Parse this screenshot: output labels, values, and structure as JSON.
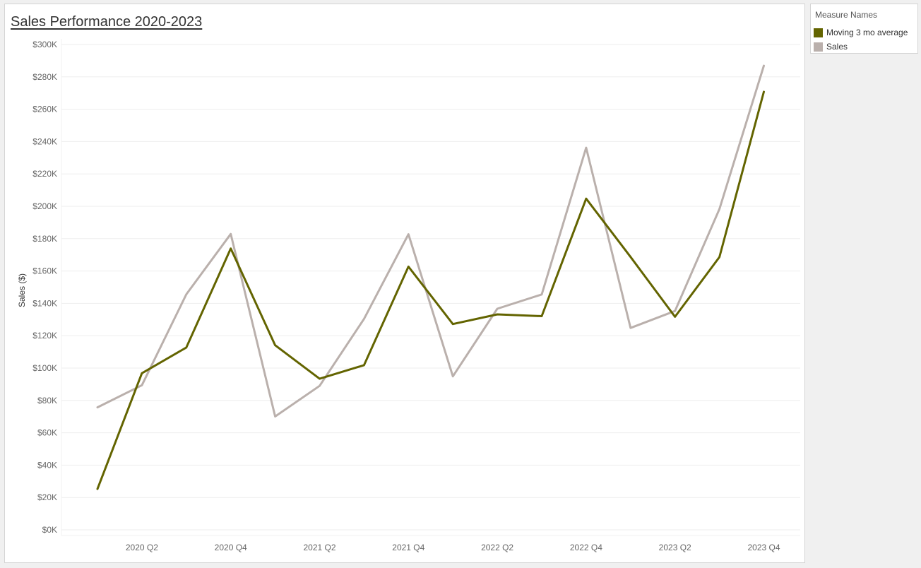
{
  "chart_data": {
    "type": "line",
    "title": "Sales Performance 2020-2023",
    "ylabel": "Sales ($)",
    "xlabel": "",
    "ylim": [
      0,
      300000
    ],
    "y_ticks": [
      0,
      20000,
      40000,
      60000,
      80000,
      100000,
      120000,
      140000,
      160000,
      180000,
      200000,
      220000,
      240000,
      260000,
      280000,
      300000
    ],
    "y_tick_labels": [
      "$0K",
      "$20K",
      "$40K",
      "$60K",
      "$80K",
      "$100K",
      "$120K",
      "$140K",
      "$160K",
      "$180K",
      "$200K",
      "$220K",
      "$240K",
      "$260K",
      "$280K",
      "$300K"
    ],
    "x": [
      "2020 Q1",
      "2020 Q2",
      "2020 Q3",
      "2020 Q4",
      "2021 Q1",
      "2021 Q2",
      "2021 Q3",
      "2021 Q4",
      "2022 Q1",
      "2022 Q2",
      "2022 Q3",
      "2022 Q4",
      "2023 Q1",
      "2023 Q2",
      "2023 Q3",
      "2023 Q4"
    ],
    "x_tick_labels": [
      "",
      "2020 Q2",
      "",
      "2020 Q4",
      "",
      "2021 Q2",
      "",
      "2021 Q4",
      "",
      "2022 Q2",
      "",
      "2022 Q4",
      "",
      "2023 Q2",
      "",
      "2023 Q4"
    ],
    "series": [
      {
        "name": "Sales",
        "color": "#bab0ac",
        "values": [
          75700,
          89400,
          145600,
          182900,
          70100,
          89000,
          130400,
          182700,
          94900,
          136700,
          145500,
          236200,
          124800,
          135300,
          198300,
          286900
        ]
      },
      {
        "name": "Moving 3 mo average",
        "color": "#636400",
        "values": [
          25300,
          96800,
          112700,
          173900,
          114100,
          93400,
          101800,
          162700,
          127200,
          133200,
          132100,
          204700,
          168700,
          131700,
          168600,
          270800
        ]
      }
    ],
    "grid": true,
    "legend_title": "Measure Names",
    "legend": [
      "Moving 3 mo average",
      "Sales"
    ],
    "legend_position": "right"
  }
}
